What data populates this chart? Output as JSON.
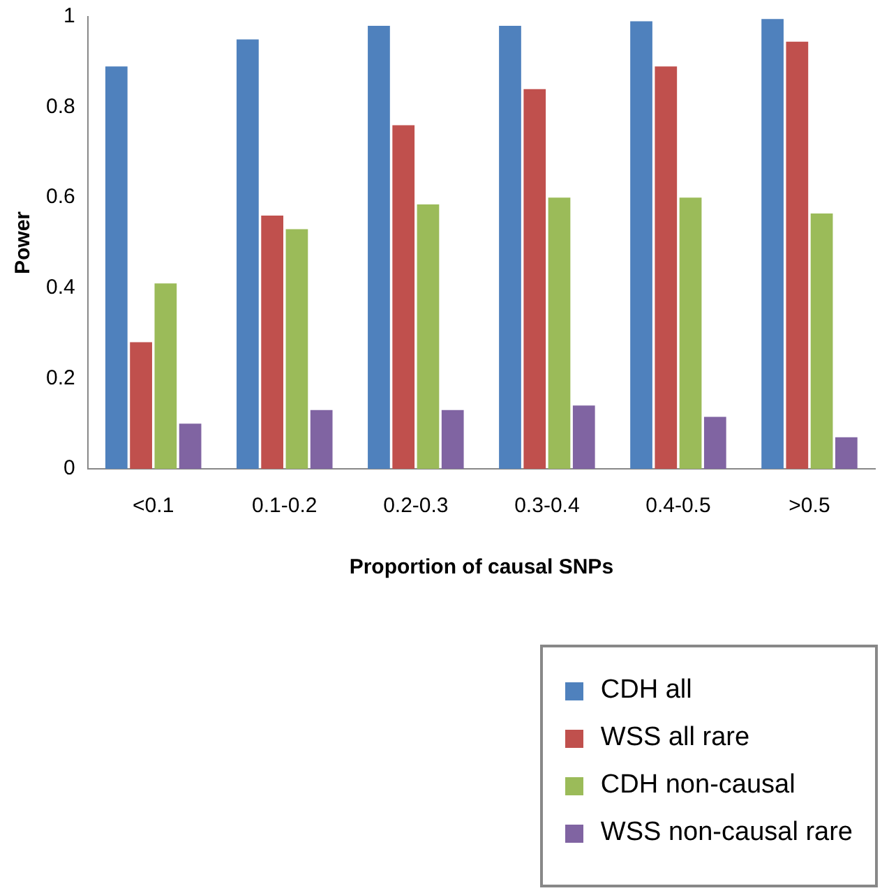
{
  "chart_data": {
    "type": "bar",
    "xlabel": "Proportion of causal SNPs",
    "ylabel": "Power",
    "categories": [
      "<0.1",
      "0.1-0.2",
      "0.2-0.3",
      "0.3-0.4",
      "0.4-0.5",
      ">0.5"
    ],
    "series": [
      {
        "name": "CDH all",
        "color": "#4f81bd",
        "values": [
          0.89,
          0.95,
          0.98,
          0.98,
          0.99,
          0.995
        ]
      },
      {
        "name": "WSS all rare",
        "color": "#c0504d",
        "values": [
          0.28,
          0.56,
          0.76,
          0.84,
          0.89,
          0.945
        ]
      },
      {
        "name": "CDH non-causal",
        "color": "#9bbb59",
        "values": [
          0.41,
          0.53,
          0.585,
          0.6,
          0.6,
          0.565
        ]
      },
      {
        "name": "WSS non-causal rare",
        "color": "#8064a2",
        "values": [
          0.1,
          0.13,
          0.13,
          0.14,
          0.115,
          0.07
        ]
      }
    ],
    "ylim": [
      0,
      1
    ],
    "yticks": [
      0,
      0.2,
      0.4,
      0.6,
      0.8,
      1
    ],
    "grid": false,
    "legend": "bottom right"
  }
}
